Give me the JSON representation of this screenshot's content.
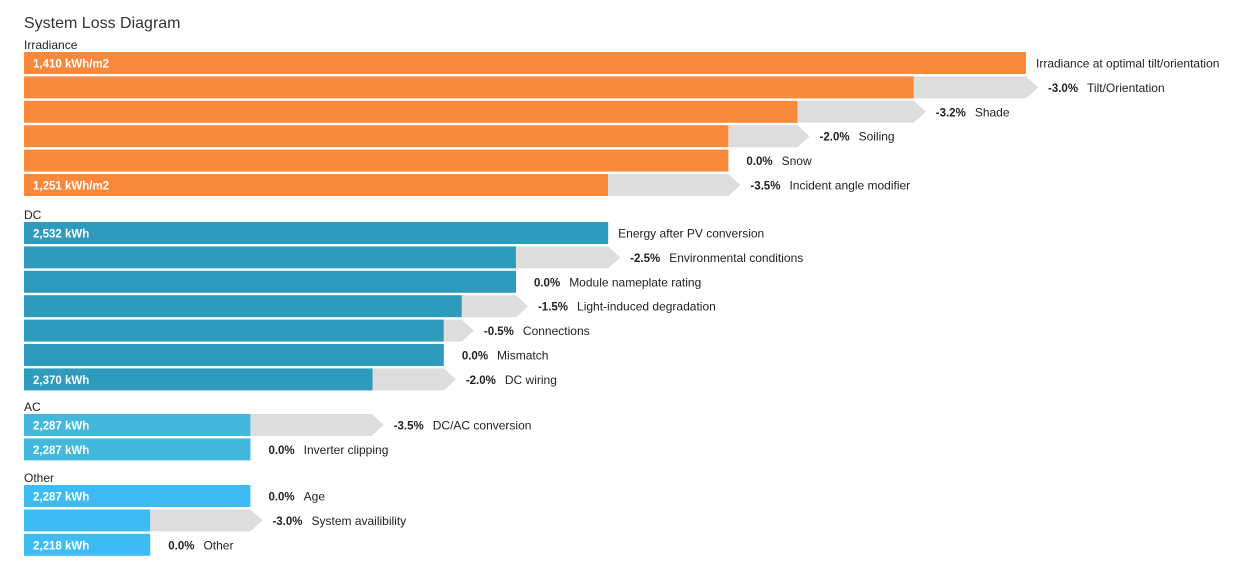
{
  "chart_data": {
    "type": "bar",
    "title": "System Loss Diagram",
    "loss_color": "#dddddd",
    "sections": [
      {
        "name": "Irradiance",
        "color": "#f8893a",
        "rows": [
          {
            "value_label": "1,410 kWh/m2",
            "pct": "",
            "text": "Irradiance at optimal tilt/orientation",
            "remain": 1.0,
            "loss": 0.0,
            "arrow": false
          },
          {
            "value_label": "",
            "pct": "-3.0%",
            "text": "Tilt/Orientation",
            "remain": 0.888,
            "loss": 0.112,
            "arrow": true
          },
          {
            "value_label": "",
            "pct": "-3.2%",
            "text": "Shade",
            "remain": 0.772,
            "loss": 0.116,
            "arrow": true
          },
          {
            "value_label": "",
            "pct": "-2.0%",
            "text": "Soiling",
            "remain": 0.703,
            "loss": 0.069,
            "arrow": true
          },
          {
            "value_label": "",
            "pct": "0.0%",
            "text": "Snow",
            "remain": 0.703,
            "loss": 0.0,
            "arrow": false
          },
          {
            "value_label": "1,251 kWh/m2",
            "pct": "-3.5%",
            "text": "Incident angle modifier",
            "remain": 0.583,
            "loss": 0.12,
            "arrow": true
          }
        ]
      },
      {
        "name": "DC",
        "color": "#2e9bbd",
        "rows": [
          {
            "value_label": "2,532 kWh",
            "pct": "",
            "text": "Energy after PV conversion",
            "remain": 0.583,
            "loss": 0.0,
            "arrow": false
          },
          {
            "value_label": "",
            "pct": "-2.5%",
            "text": "Environmental conditions",
            "remain": 0.491,
            "loss": 0.092,
            "arrow": true
          },
          {
            "value_label": "",
            "pct": "0.0%",
            "text": "Module nameplate rating",
            "remain": 0.491,
            "loss": 0.0,
            "arrow": false
          },
          {
            "value_label": "",
            "pct": "-1.5%",
            "text": "Light-induced degradation",
            "remain": 0.437,
            "loss": 0.054,
            "arrow": true
          },
          {
            "value_label": "",
            "pct": "-0.5%",
            "text": "Connections",
            "remain": 0.419,
            "loss": 0.018,
            "arrow": true
          },
          {
            "value_label": "",
            "pct": "0.0%",
            "text": "Mismatch",
            "remain": 0.419,
            "loss": 0.0,
            "arrow": false
          },
          {
            "value_label": "2,370 kWh",
            "pct": "-2.0%",
            "text": "DC wiring",
            "remain": 0.348,
            "loss": 0.071,
            "arrow": true
          }
        ]
      },
      {
        "name": "AC",
        "color": "#41b8dc",
        "rows": [
          {
            "value_label": "2,287 kWh",
            "pct": "-3.5%",
            "text": "DC/AC conversion",
            "remain": 0.226,
            "loss": 0.121,
            "arrow": true
          },
          {
            "value_label": "2,287 kWh",
            "pct": "0.0%",
            "text": "Inverter clipping",
            "remain": 0.226,
            "loss": 0.0,
            "arrow": false
          }
        ]
      },
      {
        "name": "Other",
        "color": "#3dbcf4",
        "rows": [
          {
            "value_label": "2,287 kWh",
            "pct": "0.0%",
            "text": "Age",
            "remain": 0.226,
            "loss": 0.0,
            "arrow": false
          },
          {
            "value_label": "",
            "pct": "-3.0%",
            "text": "System availibility",
            "remain": 0.126,
            "loss": 0.1,
            "arrow": true
          },
          {
            "value_label": "2,218 kWh",
            "pct": "0.0%",
            "text": "Other",
            "remain": 0.126,
            "loss": 0.0,
            "arrow": false
          }
        ]
      }
    ]
  }
}
